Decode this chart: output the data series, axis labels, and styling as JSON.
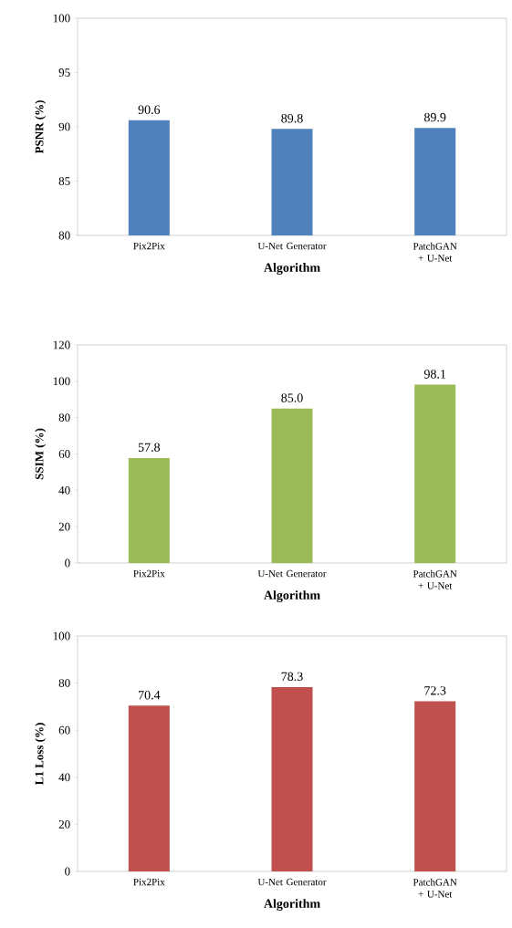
{
  "chart_data": [
    {
      "type": "bar",
      "xlabel": "Algorithm",
      "ylabel": "PSNR (%)",
      "categories": [
        "Pix2Pix",
        "U-Net Generator",
        "PatchGAN + U-Net"
      ],
      "values": [
        90.6,
        89.8,
        89.9
      ],
      "value_labels": [
        "90.6",
        "89.8",
        "89.9"
      ],
      "color": "#4f81bd",
      "ylim": [
        80,
        100
      ],
      "yticks": [
        80,
        85,
        90,
        95,
        100
      ],
      "grid": false
    },
    {
      "type": "bar",
      "xlabel": "Algorithm",
      "ylabel": "SSIM (%)",
      "categories": [
        "Pix2Pix",
        "U-Net Generator",
        "PatchGAN + U-Net"
      ],
      "values": [
        57.8,
        85.0,
        98.1
      ],
      "value_labels": [
        "57.8",
        "85.0",
        "98.1"
      ],
      "color": "#9bbb59",
      "ylim": [
        0,
        120
      ],
      "yticks": [
        0,
        20,
        40,
        60,
        80,
        100,
        120
      ],
      "grid": false
    },
    {
      "type": "bar",
      "xlabel": "Algorithm",
      "ylabel": "L1 Loss (%)",
      "categories": [
        "Pix2Pix",
        "U-Net Generator",
        "PatchGAN + U-Net"
      ],
      "values": [
        70.4,
        78.3,
        72.3
      ],
      "value_labels": [
        "70.4",
        "78.3",
        "72.3"
      ],
      "color": "#c0504d",
      "ylim": [
        0,
        100
      ],
      "yticks": [
        0,
        20,
        40,
        60,
        80,
        100
      ],
      "grid": false
    }
  ]
}
